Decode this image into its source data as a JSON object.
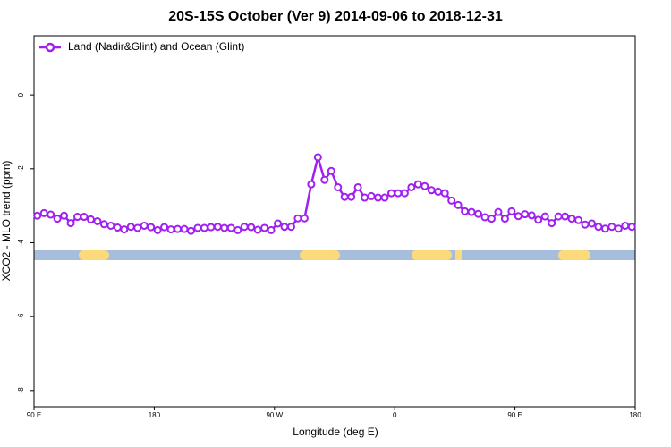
{
  "chart_data": {
    "type": "line",
    "title": "20S-15S October (Ver 9)   2014-09-06 to 2018-12-31",
    "xlabel": "Longitude (deg E)",
    "ylabel": "XCO2 - MLO trend (ppm)",
    "xlim": [
      90,
      540
    ],
    "ylim": [
      -8.44,
      1.6
    ],
    "xticks": [
      {
        "value": 90,
        "label": "90 E"
      },
      {
        "value": 180,
        "label": "180"
      },
      {
        "value": 270,
        "label": "90 W"
      },
      {
        "value": 360,
        "label": "0"
      },
      {
        "value": 450,
        "label": "90 E"
      },
      {
        "value": 540,
        "label": "180"
      }
    ],
    "yticks": [
      -8,
      -6,
      -4,
      -2,
      0
    ],
    "legend": "upper left",
    "x": [
      92.5,
      97.5,
      102.5,
      107.5,
      112.5,
      117.5,
      122.5,
      127.5,
      132.5,
      137.5,
      142.5,
      147.5,
      152.5,
      157.5,
      162.5,
      167.5,
      172.5,
      177.5,
      182.5,
      187.5,
      192.5,
      197.5,
      202.5,
      207.5,
      212.5,
      217.5,
      222.5,
      227.5,
      232.5,
      237.5,
      242.5,
      247.5,
      252.5,
      257.5,
      262.5,
      267.5,
      272.5,
      277.5,
      282.5,
      287.5,
      292.5,
      297.5,
      302.5,
      307.5,
      312.5,
      317.5,
      322.5,
      327.5,
      332.5,
      337.5,
      342.5,
      347.5,
      352.5,
      357.5,
      362.5,
      367.5,
      372.5,
      377.5,
      382.5,
      387.5,
      392.5,
      397.5,
      402.5,
      407.5,
      412.5,
      417.5,
      422.5,
      427.5,
      432.5,
      437.5,
      442.5,
      447.5,
      452.5,
      457.5,
      462.5,
      467.5,
      472.5,
      477.5,
      482.5,
      487.5,
      492.5,
      497.5,
      502.5,
      507.5,
      512.5,
      517.5,
      522.5,
      527.5,
      532.5,
      537.5
    ],
    "series": [
      {
        "name": "Land (Nadir&Glint) and Ocean (Glint)",
        "color": "#a020f0",
        "values": [
          -3.27,
          -3.2,
          -3.24,
          -3.35,
          -3.27,
          -3.47,
          -3.3,
          -3.3,
          -3.37,
          -3.42,
          -3.5,
          -3.54,
          -3.59,
          -3.64,
          -3.57,
          -3.6,
          -3.54,
          -3.58,
          -3.66,
          -3.58,
          -3.64,
          -3.63,
          -3.63,
          -3.68,
          -3.6,
          -3.6,
          -3.58,
          -3.57,
          -3.6,
          -3.6,
          -3.66,
          -3.57,
          -3.58,
          -3.65,
          -3.6,
          -3.66,
          -3.48,
          -3.57,
          -3.57,
          -3.34,
          -3.34,
          -2.42,
          -1.69,
          -2.3,
          -2.06,
          -2.5,
          -2.76,
          -2.76,
          -2.5,
          -2.78,
          -2.74,
          -2.78,
          -2.78,
          -2.66,
          -2.66,
          -2.66,
          -2.5,
          -2.42,
          -2.47,
          -2.58,
          -2.62,
          -2.66,
          -2.86,
          -2.98,
          -3.15,
          -3.17,
          -3.22,
          -3.31,
          -3.35,
          -3.17,
          -3.35,
          -3.15,
          -3.28,
          -3.23,
          -3.26,
          -3.38,
          -3.29,
          -3.47,
          -3.29,
          -3.29,
          -3.35,
          -3.39,
          -3.51,
          -3.48,
          -3.57,
          -3.62,
          -3.57,
          -3.62,
          -3.54,
          -3.57
        ]
      }
    ]
  }
}
